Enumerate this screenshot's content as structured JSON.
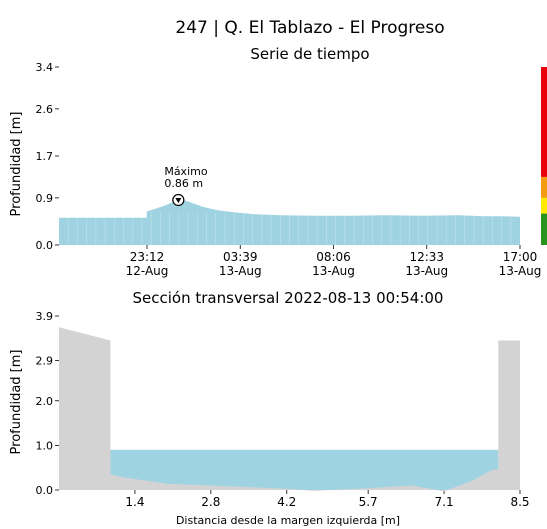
{
  "figure": {
    "title": "247 | Q. El Tablazo - El Progreso"
  },
  "chart_data": [
    {
      "type": "area",
      "title": "Serie de tiempo",
      "ylabel": "Profundidad [m]",
      "xlabel": "",
      "ylim": [
        0.0,
        3.4
      ],
      "yticks": [
        "0.0",
        "0.9",
        "1.7",
        "2.6",
        "3.4"
      ],
      "xticks": [
        {
          "time": "23:12",
          "date": "12-Aug"
        },
        {
          "time": "03:39",
          "date": "13-Aug"
        },
        {
          "time": "08:06",
          "date": "13-Aug"
        },
        {
          "time": "12:33",
          "date": "13-Aug"
        },
        {
          "time": "17:00",
          "date": "13-Aug"
        }
      ],
      "x_hours": [
        0,
        1,
        2,
        3,
        4,
        4.94,
        4.95,
        5.5,
        6.0,
        6.5,
        6.9,
        7.2,
        7.6,
        8.2,
        9.0,
        10.0,
        11.0,
        12.5,
        14.5,
        16.5,
        18.5,
        20.5,
        22.5,
        24.0,
        25.0,
        26.0
      ],
      "x_start": "12-Aug 18:45",
      "y": [
        0.52,
        0.52,
        0.52,
        0.52,
        0.52,
        0.52,
        0.64,
        0.7,
        0.76,
        0.83,
        0.86,
        0.84,
        0.79,
        0.72,
        0.66,
        0.62,
        0.59,
        0.57,
        0.56,
        0.56,
        0.57,
        0.56,
        0.57,
        0.55,
        0.55,
        0.54
      ],
      "color": "#9fd3e1",
      "annotation": {
        "label": "Máximo",
        "value_label": "0.86 m",
        "x_hours": 6.9,
        "y": 0.86
      },
      "alert_levels": [
        {
          "color": "#e8000b",
          "from": 1.3,
          "to": 3.4
        },
        {
          "color": "#f39c12",
          "from": 0.9,
          "to": 1.3
        },
        {
          "color": "#ffea00",
          "from": 0.6,
          "to": 0.9
        },
        {
          "color": "#27941f",
          "from": 0.0,
          "to": 0.6
        }
      ]
    },
    {
      "type": "area",
      "title": "Sección transversal 2022-08-13 00:54:00",
      "ylabel": "Profundidad [m]",
      "xlabel": "Distancia desde la margen izquierda [m]",
      "xlim": [
        0,
        8.5
      ],
      "ylim": [
        0.0,
        3.9
      ],
      "yticks": [
        "0.0",
        "1.0",
        "2.0",
        "2.9",
        "3.9"
      ],
      "xticks": [
        "1.4",
        "2.8",
        "4.2",
        "5.7",
        "7.1",
        "8.5"
      ],
      "water_level": 0.9,
      "bed_x": [
        0.0,
        0.95,
        0.95,
        1.2,
        2.0,
        2.8,
        4.2,
        4.7,
        5.7,
        6.5,
        7.1,
        7.6,
        8.0,
        8.1,
        8.1,
        8.5
      ],
      "bed_y": [
        3.65,
        3.35,
        0.35,
        0.28,
        0.14,
        0.1,
        0.03,
        -0.02,
        0.04,
        0.1,
        -0.03,
        0.2,
        0.46,
        0.46,
        3.35,
        3.35
      ],
      "water_color": "#9fd3e1",
      "ground_color": "#d3d3d3"
    }
  ]
}
